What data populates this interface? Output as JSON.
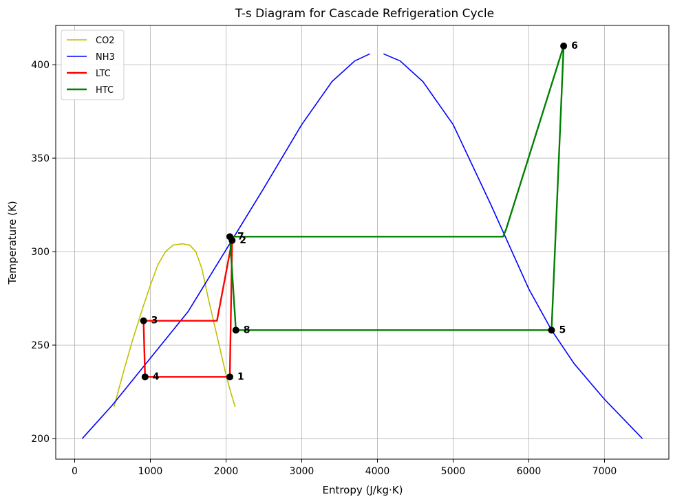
{
  "chart_data": {
    "type": "line",
    "title": "T-s Diagram for Cascade Refrigeration Cycle",
    "xlabel": "Entropy (J/kg·K)",
    "ylabel": "Temperature (K)",
    "xlim": [
      -250,
      7850
    ],
    "ylim": [
      189,
      421
    ],
    "xticks": [
      0,
      1000,
      2000,
      3000,
      4000,
      5000,
      6000,
      7000
    ],
    "yticks": [
      200,
      250,
      300,
      350,
      400
    ],
    "grid": true,
    "legend_position": "upper-left",
    "series": [
      {
        "name": "CO2",
        "color": "#bfbf00",
        "width": 1.6,
        "segments": [
          [
            [
              520,
              217
            ],
            [
              640,
              235
            ],
            [
              760,
              252
            ],
            [
              900,
              270
            ],
            [
              1000,
              282
            ],
            [
              1100,
              293
            ],
            [
              1200,
              300
            ],
            [
              1300,
              303.5
            ],
            [
              1420,
              304.2
            ],
            [
              1520,
              303.5
            ],
            [
              1600,
              300
            ],
            [
              1680,
              291
            ],
            [
              1760,
              276
            ],
            [
              1840,
              262
            ],
            [
              1920,
              248
            ],
            [
              2000,
              234
            ],
            [
              2060,
              225
            ],
            [
              2120,
              217
            ]
          ]
        ]
      },
      {
        "name": "NH3",
        "color": "#0000ff",
        "width": 1.6,
        "segments": [
          [
            [
              100,
              200
            ],
            [
              500,
              218
            ],
            [
              1000,
              243
            ],
            [
              1500,
              268
            ],
            [
              2000,
              301
            ],
            [
              2500,
              334
            ],
            [
              3000,
              368
            ],
            [
              3400,
              391
            ],
            [
              3700,
              402
            ],
            [
              3900,
              405.8
            ]
          ],
          [
            [
              4080,
              405.8
            ],
            [
              4300,
              402
            ],
            [
              4600,
              391
            ],
            [
              5000,
              368
            ],
            [
              5500,
              325
            ],
            [
              6000,
              280
            ],
            [
              6300,
              258
            ],
            [
              6600,
              240
            ],
            [
              7000,
              221
            ],
            [
              7500,
              200
            ]
          ]
        ]
      },
      {
        "name": "LTC",
        "color": "#ff0000",
        "width": 2.4,
        "segments": [
          [
            [
              2050,
              233
            ],
            [
              2080,
              306
            ],
            [
              1880,
              263
            ],
            [
              910,
              263
            ],
            [
              930,
              233
            ],
            [
              2050,
              233
            ]
          ]
        ]
      },
      {
        "name": "HTC",
        "color": "#008000",
        "width": 2.4,
        "segments": [
          [
            [
              2130,
              258
            ],
            [
              6300,
              258
            ],
            [
              6460,
              410
            ],
            [
              5700,
              312
            ],
            [
              5660,
              308
            ],
            [
              2050,
              308
            ],
            [
              2130,
              258
            ]
          ]
        ]
      }
    ],
    "points": [
      {
        "label": "1",
        "x": 2050,
        "y": 233
      },
      {
        "label": "2",
        "x": 2080,
        "y": 306
      },
      {
        "label": "3",
        "x": 910,
        "y": 263
      },
      {
        "label": "4",
        "x": 930,
        "y": 233
      },
      {
        "label": "5",
        "x": 6300,
        "y": 258
      },
      {
        "label": "6",
        "x": 6460,
        "y": 410
      },
      {
        "label": "7",
        "x": 2050,
        "y": 308
      },
      {
        "label": "8",
        "x": 2130,
        "y": 258
      }
    ]
  }
}
